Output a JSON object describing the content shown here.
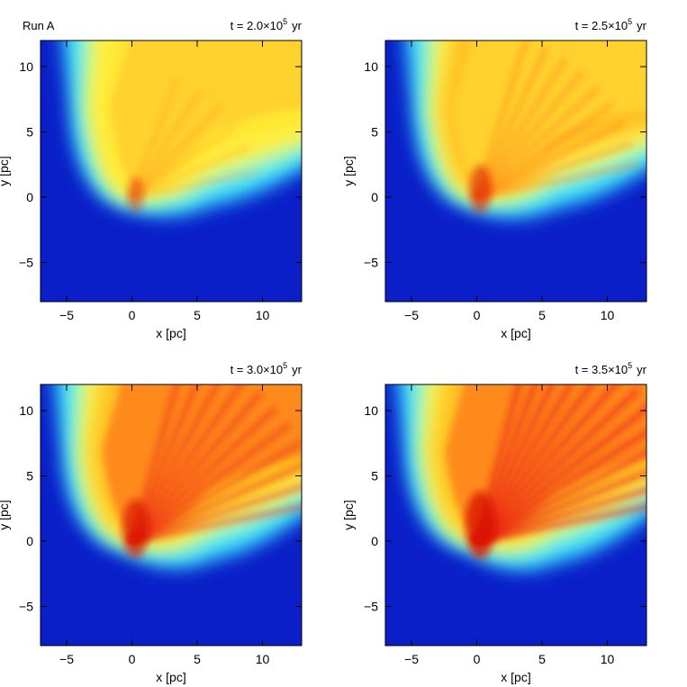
{
  "chart_data": [
    {
      "type": "heatmap",
      "run_label": "Run A",
      "time_prefix": "t = 2.0×10",
      "time_exp": "5",
      "time_unit": "yr",
      "xlabel": "x [pc]",
      "ylabel": "y [pc]",
      "xlim": [
        -7,
        13
      ],
      "ylim": [
        -8,
        12
      ],
      "xticks": [
        -5,
        0,
        5,
        10
      ],
      "yticks": [
        -5,
        0,
        5,
        10
      ],
      "colormap": "jet",
      "background_color": "#0a1fc8",
      "features": {
        "cone_opening": 0.55,
        "intensity": 0.55,
        "jet_core": 0.15
      }
    },
    {
      "type": "heatmap",
      "run_label": "",
      "time_prefix": "t = 2.5×10",
      "time_exp": "5",
      "time_unit": "yr",
      "xlabel": "x [pc]",
      "ylabel": "y [pc]",
      "xlim": [
        -7,
        13
      ],
      "ylim": [
        -8,
        12
      ],
      "xticks": [
        -5,
        0,
        5,
        10
      ],
      "yticks": [
        -5,
        0,
        5,
        10
      ],
      "colormap": "jet",
      "background_color": "#0a1fc8",
      "features": {
        "cone_opening": 0.6,
        "intensity": 0.7,
        "jet_core": 0.45
      }
    },
    {
      "type": "heatmap",
      "run_label": "",
      "time_prefix": "t = 3.0×10",
      "time_exp": "5",
      "time_unit": "yr",
      "xlabel": "x [pc]",
      "ylabel": "y [pc]",
      "xlim": [
        -7,
        13
      ],
      "ylim": [
        -8,
        12
      ],
      "xticks": [
        -5,
        0,
        5,
        10
      ],
      "yticks": [
        -5,
        0,
        5,
        10
      ],
      "colormap": "jet",
      "background_color": "#0a1fc8",
      "features": {
        "cone_opening": 0.75,
        "intensity": 0.82,
        "jet_core": 0.7
      }
    },
    {
      "type": "heatmap",
      "run_label": "",
      "time_prefix": "t = 3.5×10",
      "time_exp": "5",
      "time_unit": "yr",
      "xlabel": "x [pc]",
      "ylabel": "y [pc]",
      "xlim": [
        -7,
        13
      ],
      "ylim": [
        -8,
        12
      ],
      "xticks": [
        -5,
        0,
        5,
        10
      ],
      "yticks": [
        -5,
        0,
        5,
        10
      ],
      "colormap": "jet",
      "background_color": "#0a1fc8",
      "features": {
        "cone_opening": 0.8,
        "intensity": 0.9,
        "jet_core": 0.9
      }
    }
  ]
}
